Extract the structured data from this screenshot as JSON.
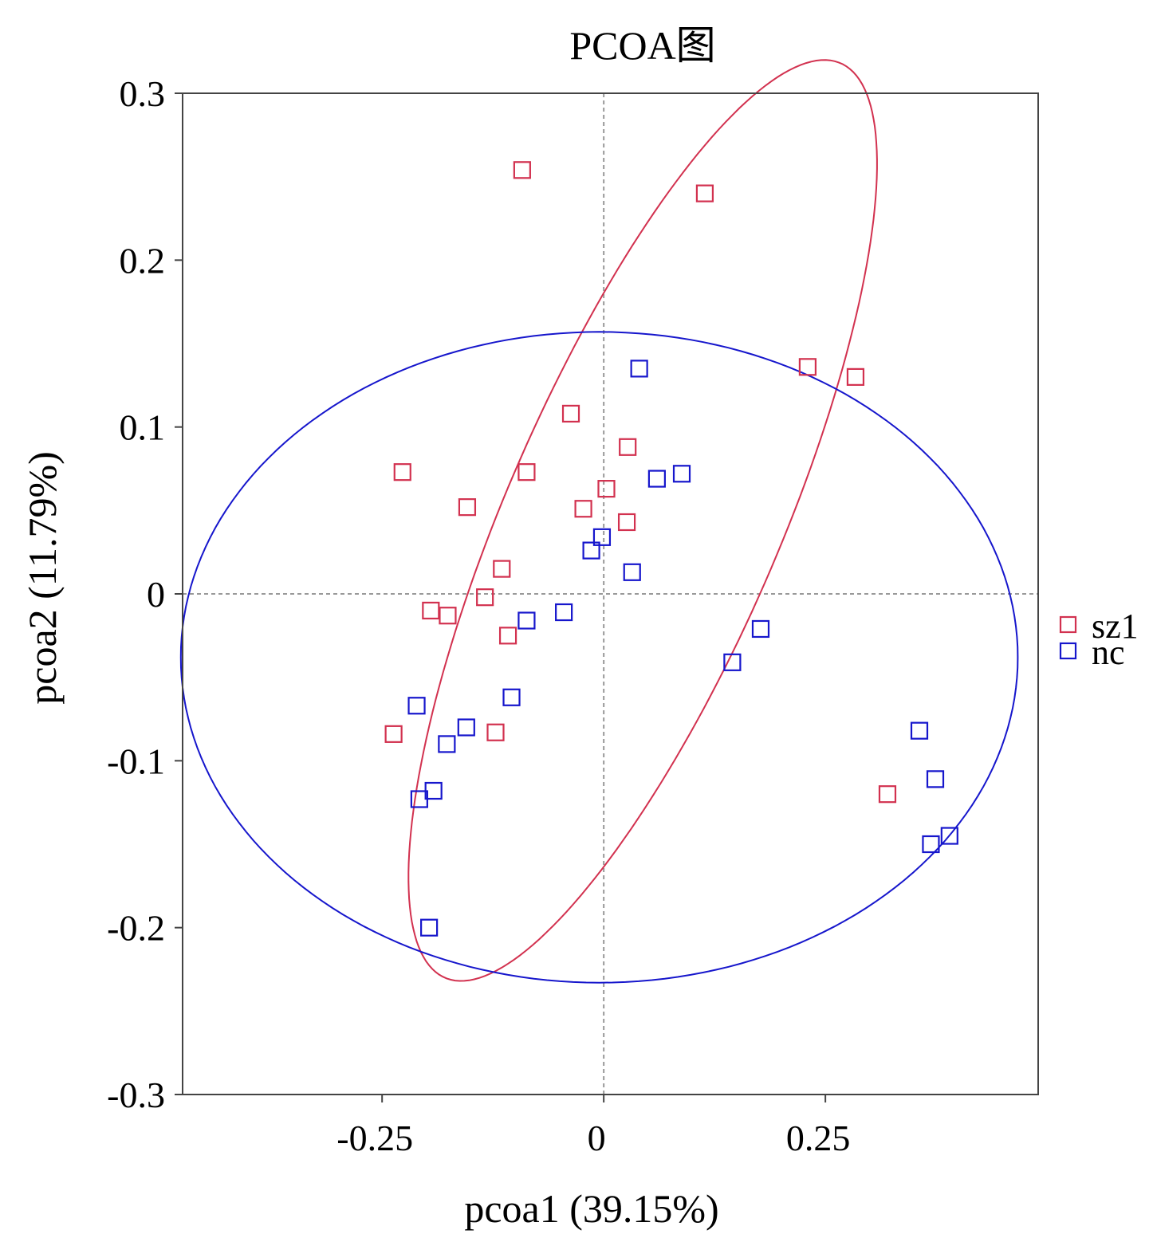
{
  "chart_data": {
    "type": "scatter",
    "title": "PCOA图",
    "xlabel": "pcoa1 (39.15%)",
    "ylabel": "pcoa2 (11.79%)",
    "xlim": [
      -0.475,
      0.49
    ],
    "ylim": [
      -0.3,
      0.3
    ],
    "xticks": [
      -0.25,
      0,
      0.25
    ],
    "xtick_labels": [
      "-0.25",
      "0",
      "0.25"
    ],
    "yticks": [
      -0.3,
      -0.2,
      -0.1,
      0,
      0.1,
      0.2,
      0.3
    ],
    "ytick_labels": [
      "-0.3",
      "-0.2",
      "-0.1",
      "0",
      "0.1",
      "0.2",
      "0.3"
    ],
    "reference_lines": {
      "x": 0,
      "y": 0
    },
    "legend": "right",
    "series": [
      {
        "name": "sz1",
        "color": "#d2314f",
        "marker": "open-square",
        "points": [
          [
            -0.092,
            0.254
          ],
          [
            0.114,
            0.24
          ],
          [
            0.23,
            0.136
          ],
          [
            0.284,
            0.13
          ],
          [
            -0.037,
            0.108
          ],
          [
            0.027,
            0.088
          ],
          [
            -0.227,
            0.073
          ],
          [
            -0.087,
            0.073
          ],
          [
            -0.154,
            0.052
          ],
          [
            0.003,
            0.063
          ],
          [
            -0.023,
            0.051
          ],
          [
            0.026,
            0.043
          ],
          [
            -0.115,
            0.015
          ],
          [
            -0.134,
            -0.002
          ],
          [
            -0.195,
            -0.01
          ],
          [
            -0.176,
            -0.013
          ],
          [
            -0.108,
            -0.025
          ],
          [
            -0.237,
            -0.084
          ],
          [
            -0.122,
            -0.083
          ],
          [
            0.32,
            -0.12
          ]
        ]
      },
      {
        "name": "nc",
        "color": "#1616cc",
        "marker": "open-square",
        "points": [
          [
            0.04,
            0.135
          ],
          [
            0.06,
            0.069
          ],
          [
            0.088,
            0.072
          ],
          [
            -0.002,
            0.034
          ],
          [
            -0.014,
            0.026
          ],
          [
            0.032,
            0.013
          ],
          [
            -0.045,
            -0.011
          ],
          [
            -0.087,
            -0.016
          ],
          [
            0.177,
            -0.021
          ],
          [
            0.145,
            -0.041
          ],
          [
            -0.104,
            -0.062
          ],
          [
            -0.211,
            -0.067
          ],
          [
            -0.155,
            -0.08
          ],
          [
            -0.177,
            -0.09
          ],
          [
            -0.192,
            -0.118
          ],
          [
            -0.208,
            -0.123
          ],
          [
            -0.197,
            -0.2
          ],
          [
            0.356,
            -0.082
          ],
          [
            0.374,
            -0.111
          ],
          [
            0.369,
            -0.15
          ],
          [
            0.39,
            -0.145
          ]
        ]
      }
    ],
    "ellipses": [
      {
        "series": "sz1",
        "center": [
          0.044,
          0.044
        ],
        "semi_axes": [
          0.36,
          0.128
        ],
        "angle_deg": 46.6
      },
      {
        "series": "nc",
        "center": [
          -0.005,
          -0.038
        ],
        "semi_axes": [
          0.472,
          0.195
        ],
        "angle_deg": 0
      }
    ]
  }
}
